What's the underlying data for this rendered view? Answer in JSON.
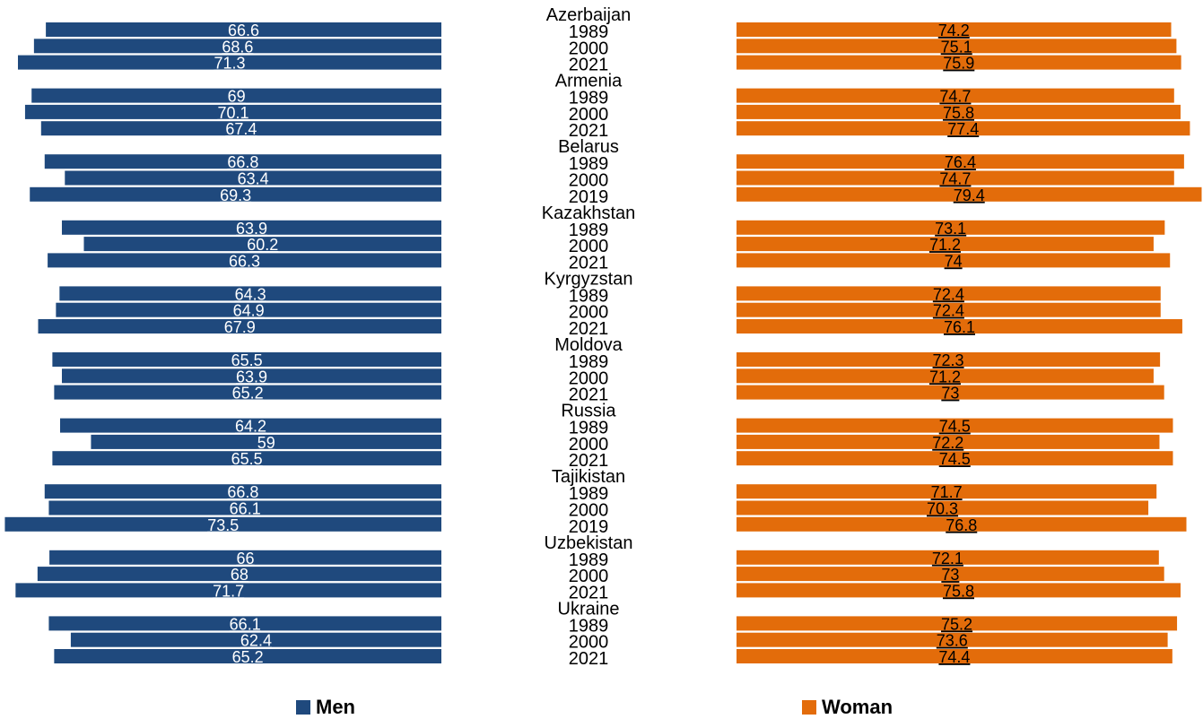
{
  "chart_data": {
    "type": "bar",
    "orientation": "horizontal-butterfly",
    "groups": [
      {
        "country": "Azerbaijan",
        "years": [
          "1989",
          "2000",
          "2021"
        ],
        "men": [
          66.6,
          68.6,
          71.3
        ],
        "women": [
          74.2,
          75.1,
          75.9
        ]
      },
      {
        "country": "Armenia",
        "years": [
          "1989",
          "2000",
          "2021"
        ],
        "men": [
          69,
          70.1,
          67.4
        ],
        "women": [
          74.7,
          75.8,
          77.4
        ]
      },
      {
        "country": "Belarus",
        "years": [
          "1989",
          "2000",
          "2019"
        ],
        "men": [
          66.8,
          63.4,
          69.3
        ],
        "women": [
          76.4,
          74.7,
          79.4
        ]
      },
      {
        "country": "Kazakhstan",
        "years": [
          "1989",
          "2000",
          "2021"
        ],
        "men": [
          63.9,
          60.2,
          66.3
        ],
        "women": [
          73.1,
          71.2,
          74
        ]
      },
      {
        "country": "Kyrgyzstan",
        "years": [
          "1989",
          "2000",
          "2021"
        ],
        "men": [
          64.3,
          64.9,
          67.9
        ],
        "women": [
          72.4,
          72.4,
          76.1
        ]
      },
      {
        "country": "Moldova",
        "years": [
          "1989",
          "2000",
          "2021"
        ],
        "men": [
          65.5,
          63.9,
          65.2
        ],
        "women": [
          72.3,
          71.2,
          73
        ]
      },
      {
        "country": "Russia",
        "years": [
          "1989",
          "2000",
          "2021"
        ],
        "men": [
          64.2,
          59,
          65.5
        ],
        "women": [
          74.5,
          72.2,
          74.5
        ]
      },
      {
        "country": "Tajikistan",
        "years": [
          "1989",
          "2000",
          "2019"
        ],
        "men": [
          66.8,
          66.1,
          73.5
        ],
        "women": [
          71.7,
          70.3,
          76.8
        ]
      },
      {
        "country": "Uzbekistan",
        "years": [
          "1989",
          "2000",
          "2021"
        ],
        "men": [
          66,
          68,
          71.7
        ],
        "women": [
          72.1,
          73,
          75.8
        ]
      },
      {
        "country": "Ukraine",
        "years": [
          "1989",
          "2000",
          "2021"
        ],
        "men": [
          66.1,
          62.4,
          65.2
        ],
        "women": [
          75.2,
          73.6,
          74.4
        ]
      }
    ],
    "series": [
      {
        "name": "Men",
        "color": "#1f497d",
        "side": "left"
      },
      {
        "name": "Woman",
        "color": "#e36c0a",
        "side": "right"
      }
    ],
    "legend_position": "bottom",
    "grid": false
  },
  "legend": {
    "men_label": "Men",
    "women_label": "Woman"
  }
}
